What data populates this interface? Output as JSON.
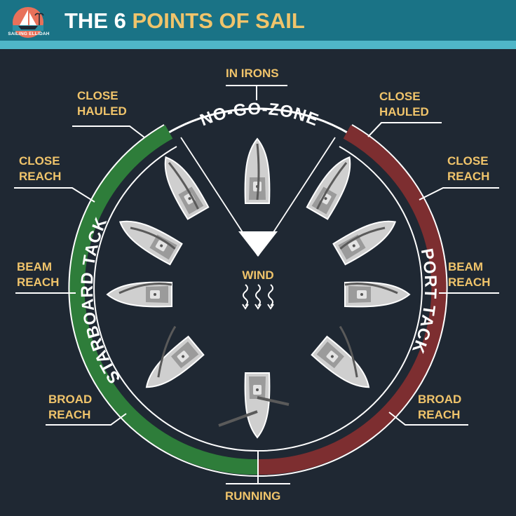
{
  "header": {
    "brand": "SAILING ELLIDAH",
    "title_prefix": "THE 6",
    "title_accent": "POINTS OF SAIL"
  },
  "diagram": {
    "no_go_zone": "NO-GO-ZONE",
    "wind": "WIND",
    "starboard_tack": "STARBOARD TACK",
    "port_tack": "PORT TACK",
    "colors": {
      "background": "#1f2833",
      "starboard": "#2e7d3a",
      "port": "#7d2e30",
      "label": "#f0c46b"
    },
    "labels": {
      "in_irons": "IN IRONS",
      "running": "RUNNING",
      "left": {
        "close_hauled": [
          "CLOSE",
          "HAULED"
        ],
        "close_reach": [
          "CLOSE",
          "REACH"
        ],
        "beam_reach": [
          "BEAM",
          "REACH"
        ],
        "broad_reach": [
          "BROAD",
          "REACH"
        ]
      },
      "right": {
        "close_hauled": [
          "CLOSE",
          "HAULED"
        ],
        "close_reach": [
          "CLOSE",
          "REACH"
        ],
        "beam_reach": [
          "BEAM",
          "REACH"
        ],
        "broad_reach": [
          "BROAD",
          "REACH"
        ]
      }
    }
  }
}
